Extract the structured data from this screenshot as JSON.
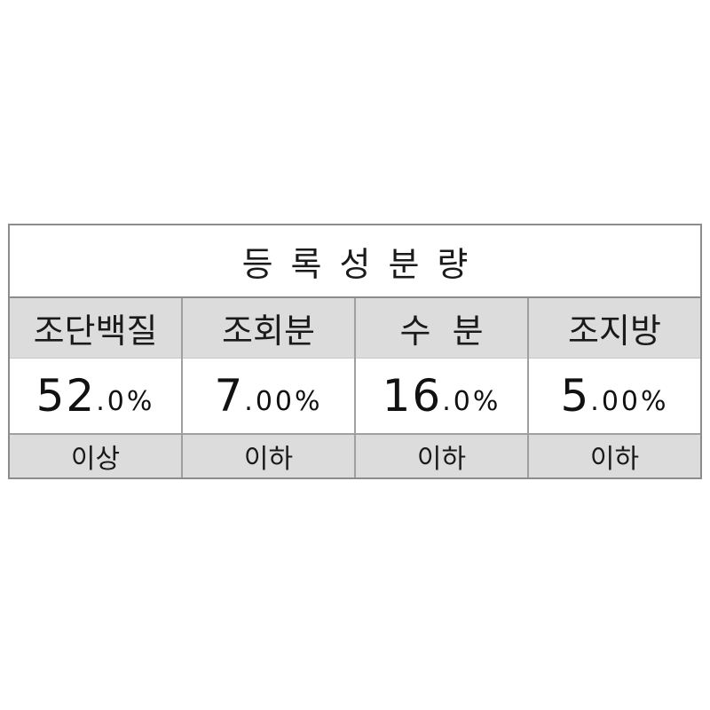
{
  "table": {
    "title": "등록성분량",
    "columns": [
      {
        "name": "조단백질",
        "value_main": "52",
        "value_rest": ".0%",
        "condition": "이상"
      },
      {
        "name": "조회분",
        "value_main": "7",
        "value_rest": ".00%",
        "condition": "이하"
      },
      {
        "name": "수  분",
        "value_main": "16",
        "value_rest": ".0%",
        "condition": "이하"
      },
      {
        "name": "조지방",
        "value_main": "5",
        "value_rest": ".00%",
        "condition": "이하"
      }
    ]
  }
}
